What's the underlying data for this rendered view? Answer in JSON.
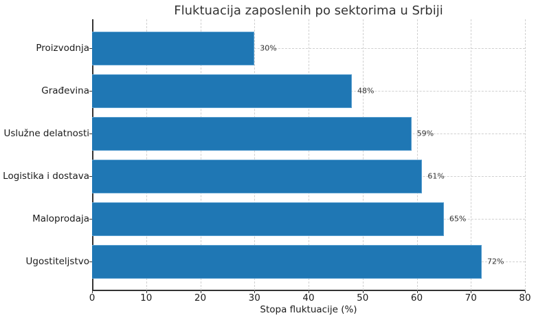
{
  "chart_data": {
    "type": "bar",
    "orientation": "horizontal",
    "title": "Fluktuacija zaposlenih po sektorima u Srbiji",
    "xlabel": "Stopa fluktuacije (%)",
    "ylabel": "",
    "categories": [
      "Proizvodnja",
      "Građevina",
      "Uslužne delatnosti",
      "Logistika i dostava",
      "Maloprodaja",
      "Ugostiteljstvo"
    ],
    "values": [
      30,
      48,
      59,
      61,
      65,
      72
    ],
    "data_labels": [
      "30%",
      "48%",
      "59%",
      "61%",
      "65%",
      "72%"
    ],
    "xlim": [
      0,
      80
    ],
    "xticks": [
      "0",
      "10",
      "20",
      "30",
      "40",
      "50",
      "60",
      "70",
      "80"
    ],
    "grid": true,
    "grid_style": "dashed",
    "bar_color": "#1f77b4",
    "legend": null
  }
}
